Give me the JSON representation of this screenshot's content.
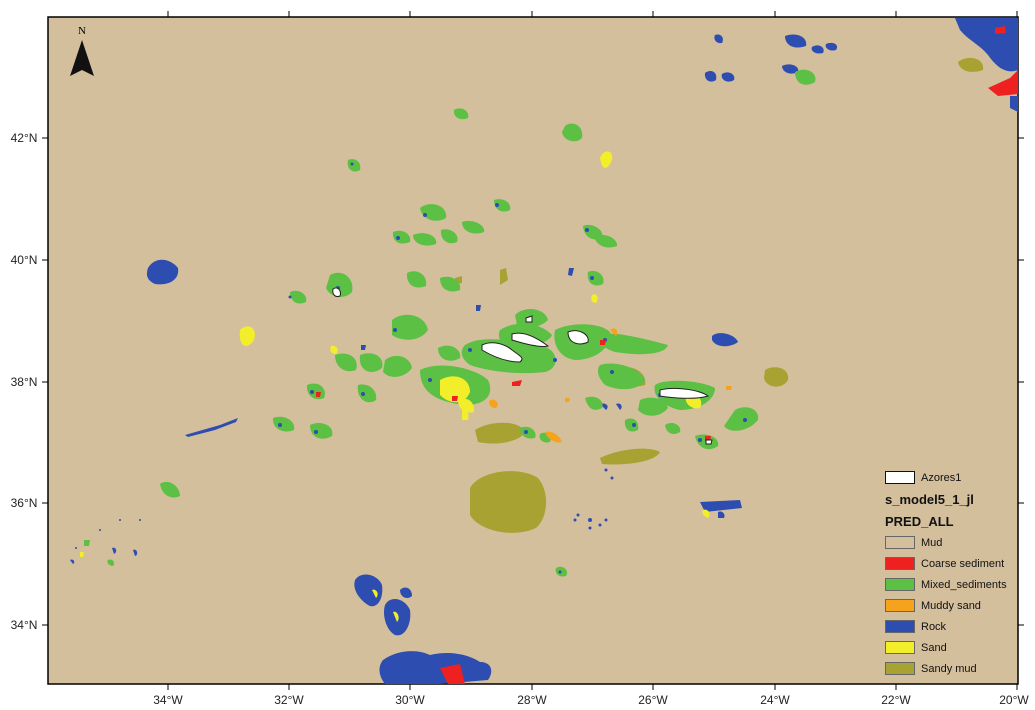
{
  "north_arrow": {
    "label": "N"
  },
  "axes": {
    "longitude_ticks": [
      "34°W",
      "32°W",
      "30°W",
      "28°W",
      "26°W",
      "24°W",
      "22°W",
      "20°W"
    ],
    "latitude_ticks": [
      "42°N",
      "40°N",
      "38°N",
      "36°N",
      "34°N"
    ]
  },
  "legend": {
    "layer_name": "Azores1",
    "model_name": "s_model5_1_jl",
    "field_name": "PRED_ALL",
    "items": [
      {
        "label": "Mud",
        "color": "#D4BF9D"
      },
      {
        "label": "Coarse sediment",
        "color": "#EE2020"
      },
      {
        "label": "Mixed_sediments",
        "color": "#5CC045"
      },
      {
        "label": "Muddy sand",
        "color": "#F5A21C"
      },
      {
        "label": "Rock",
        "color": "#2E4DB0"
      },
      {
        "label": "Sand",
        "color": "#F2EE2A"
      },
      {
        "label": "Sandy mud",
        "color": "#A8A232"
      }
    ]
  },
  "colors": {
    "background": "#D4BF9D",
    "island": "#FFFFFF"
  }
}
